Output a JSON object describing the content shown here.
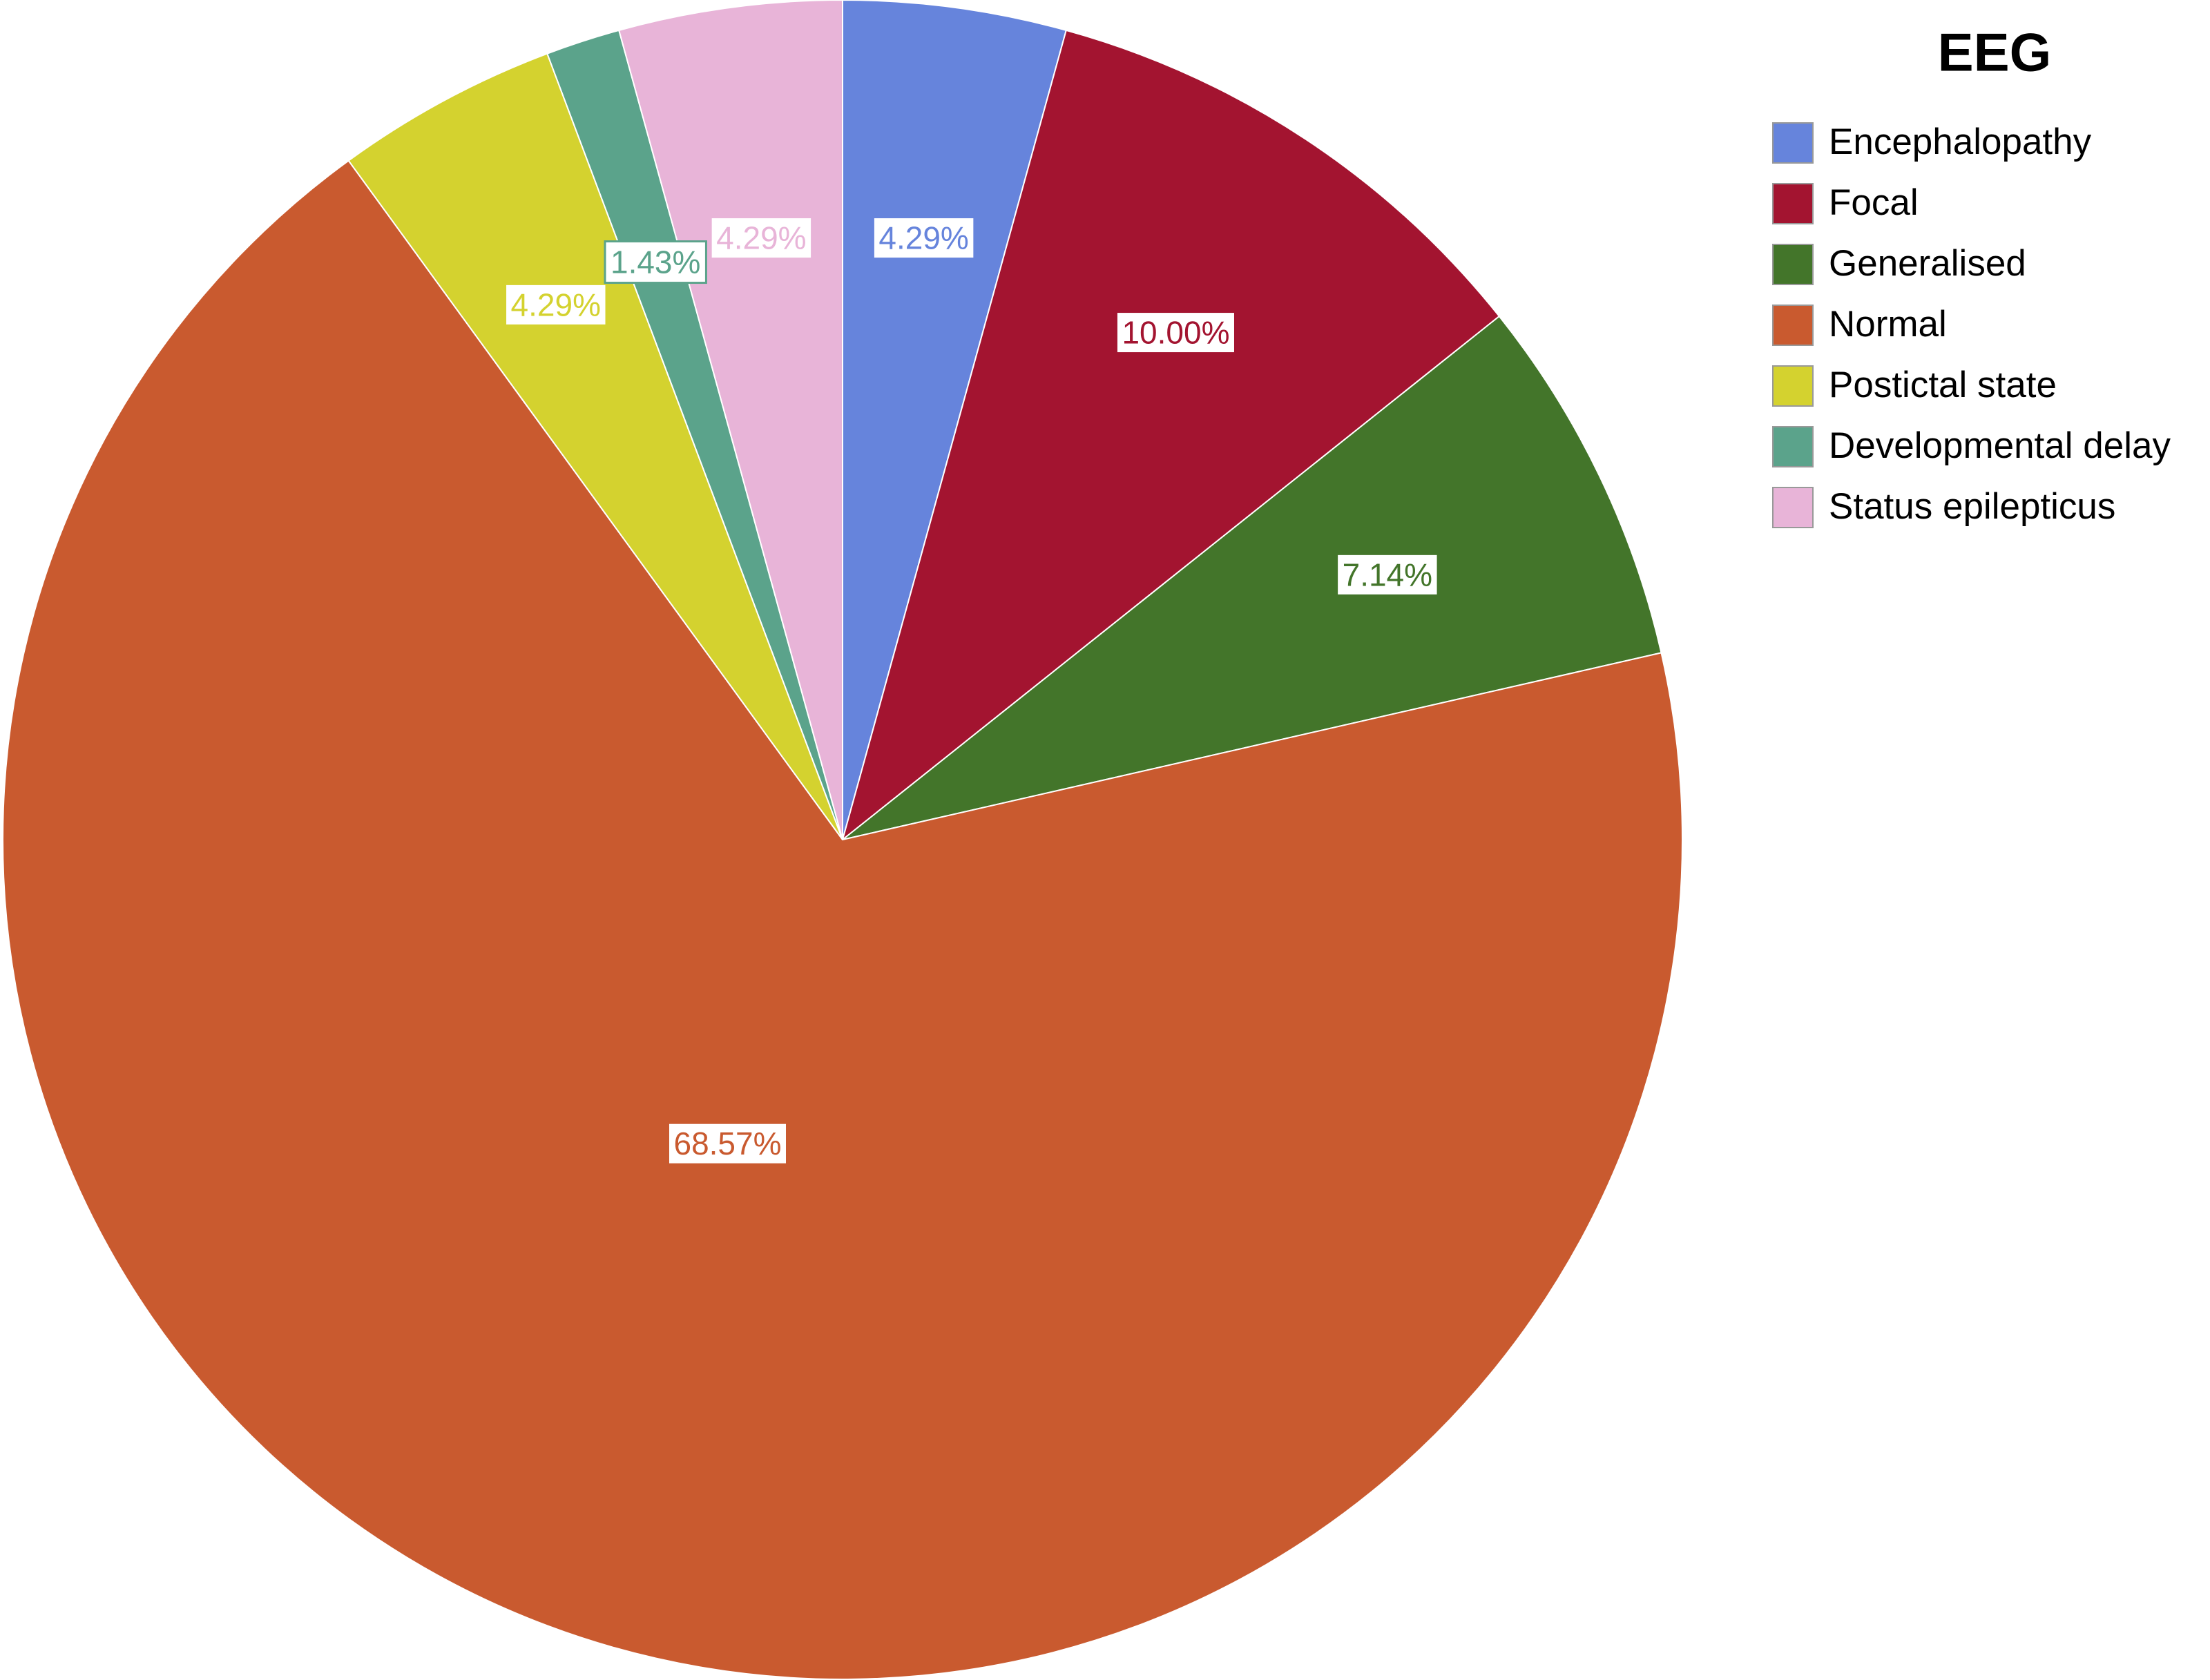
{
  "chart_data": {
    "type": "pie",
    "legend_title": "EEG",
    "categories": [
      "Encephalopathy",
      "Focal",
      "Generalised",
      "Normal",
      "Postictal state",
      "Developmental delay",
      "Status epilepticus"
    ],
    "values": [
      4.29,
      10.0,
      7.14,
      68.57,
      4.29,
      1.43,
      4.29
    ],
    "value_labels": [
      "4.29%",
      "10.00%",
      "7.14%",
      "68.57%",
      "4.29%",
      "1.43%",
      "4.29%"
    ],
    "colors": [
      "#6684dc",
      "#a31430",
      "#43752a",
      "#c95a2f",
      "#d4d22f",
      "#5ba38b",
      "#e8b4d8"
    ],
    "legend": "right"
  }
}
